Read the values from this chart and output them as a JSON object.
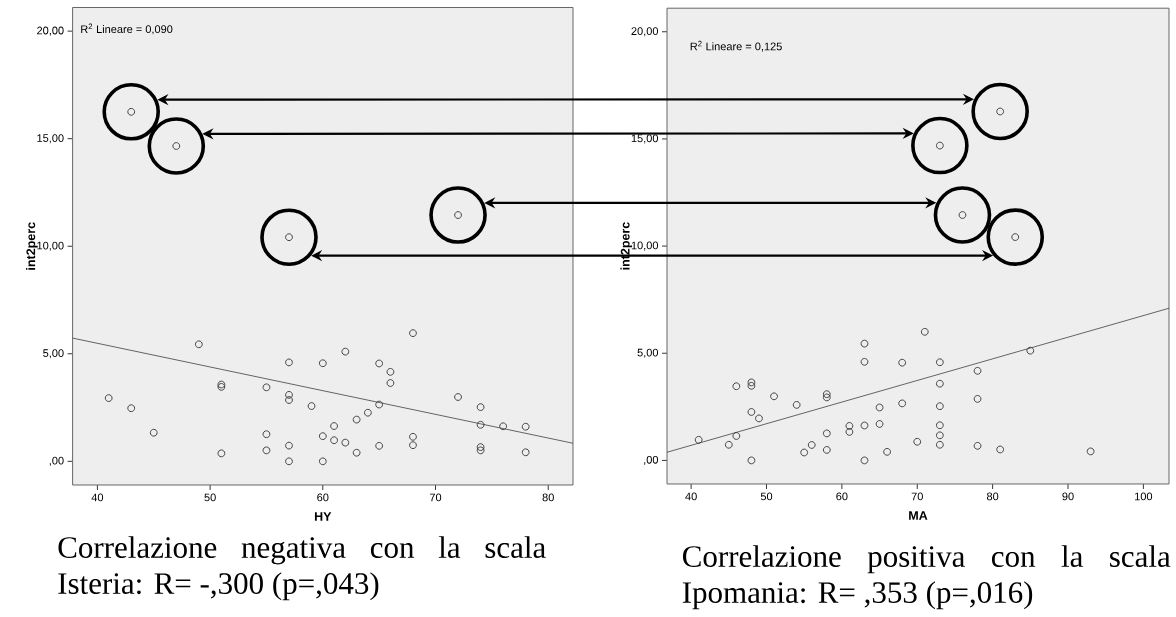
{
  "chart_data": [
    {
      "type": "scatter",
      "xlabel": "HY",
      "ylabel": "int2perc",
      "marker": "circle",
      "xlim": [
        37.8,
        82.2
      ],
      "ylim": [
        -1.1,
        21.1
      ],
      "xticks": [
        40,
        50,
        60,
        70,
        80
      ],
      "yticks": [
        {
          "value": 0,
          "label": ",00"
        },
        {
          "value": 5,
          "label": "5,00"
        },
        {
          "value": 10,
          "label": "10,00"
        },
        {
          "value": 15,
          "label": "15,00"
        },
        {
          "value": 20,
          "label": "20,00"
        }
      ],
      "annotations": [
        "R$^{2}$ Lineare = 0,090",
        "Correlazione negativa con la scala Isteria: R= -,300 (p=,043)"
      ],
      "series": [
        {
          "color": "#333333",
          "x": [
            41,
            43,
            45,
            49,
            51,
            51,
            51,
            55,
            55,
            55,
            57,
            57,
            57,
            57,
            57,
            59,
            60,
            60,
            60,
            61,
            61,
            62,
            62,
            63,
            63,
            64,
            65,
            65,
            65,
            66,
            66,
            68,
            68,
            68,
            72,
            74,
            74,
            74,
            74,
            76,
            78,
            78
          ],
          "values": [
            2.94,
            2.47,
            1.33,
            5.44,
            3.57,
            3.46,
            0.37,
            3.44,
            1.26,
            0.51,
            4.6,
            3.09,
            2.85,
            0.73,
            0,
            2.57,
            4.56,
            1.17,
            0,
            1.64,
            0.98,
            5.1,
            0.87,
            1.94,
            0.4,
            2.26,
            4.55,
            2.64,
            0.72,
            4.16,
            3.64,
            5.96,
            1.14,
            0.75,
            2.99,
            2.52,
            1.7,
            0.66,
            0.51,
            1.63,
            1.61,
            0.42
          ]
        },
        {
          "color": "#333333",
          "x": [
            43,
            47,
            72,
            57
          ],
          "values": [
            16.25,
            14.66,
            11.45,
            10.42
          ]
        },
        {
          "type": "line",
          "marker": "none",
          "color": "#404040",
          "x": [
            37.8,
            82.2
          ],
          "values": [
            5.73,
            0.84
          ]
        }
      ]
    },
    {
      "type": "scatter",
      "xlabel": "MA",
      "ylabel": "int2perc",
      "marker": "circle",
      "xlim": [
        36.8,
        103.4
      ],
      "ylim": [
        -1.1,
        21.1
      ],
      "xticks": [
        40,
        50,
        60,
        70,
        80,
        90,
        100
      ],
      "yticks": [
        {
          "value": 0,
          "label": ",00"
        },
        {
          "value": 5,
          "label": "5,00"
        },
        {
          "value": 10,
          "label": "10,00"
        },
        {
          "value": 15,
          "label": "15,00"
        },
        {
          "value": 20,
          "label": "20,00"
        }
      ],
      "annotations": [
        "R$^{2}$ Lineare = 0,125",
        "Correlazione positiva con la scala Ipomania: R= ,353 (p=,016)"
      ],
      "series": [
        {
          "color": "#333333",
          "x": [
            41,
            45,
            46,
            46,
            48,
            48,
            48,
            48,
            49,
            51,
            54,
            55,
            56,
            58,
            58,
            58,
            58,
            61,
            61,
            63,
            63,
            63,
            63,
            65,
            65,
            66,
            68,
            68,
            70,
            71,
            73,
            73,
            73,
            73,
            73,
            73,
            78,
            78,
            78,
            81,
            85,
            93
          ],
          "values": [
            0.96,
            0.73,
            3.46,
            1.14,
            3.64,
            3.48,
            2.26,
            0,
            1.96,
            2.99,
            2.59,
            0.37,
            0.72,
            3.09,
            2.94,
            1.26,
            0.49,
            1.61,
            1.33,
            5.45,
            4.6,
            1.63,
            0,
            2.47,
            1.7,
            0.4,
            4.56,
            2.66,
            0.87,
            6.0,
            4.58,
            3.58,
            2.53,
            1.64,
            1.17,
            0.73,
            4.18,
            2.87,
            0.68,
            0.51,
            5.12,
            0.42
          ]
        },
        {
          "color": "#333333",
          "x": [
            81,
            73,
            76,
            83
          ],
          "values": [
            16.28,
            14.69,
            11.45,
            10.42
          ]
        },
        {
          "type": "line",
          "marker": "none",
          "color": "#404040",
          "x": [
            36.8,
            103.4
          ],
          "values": [
            0.38,
            7.1
          ]
        }
      ]
    }
  ]
}
